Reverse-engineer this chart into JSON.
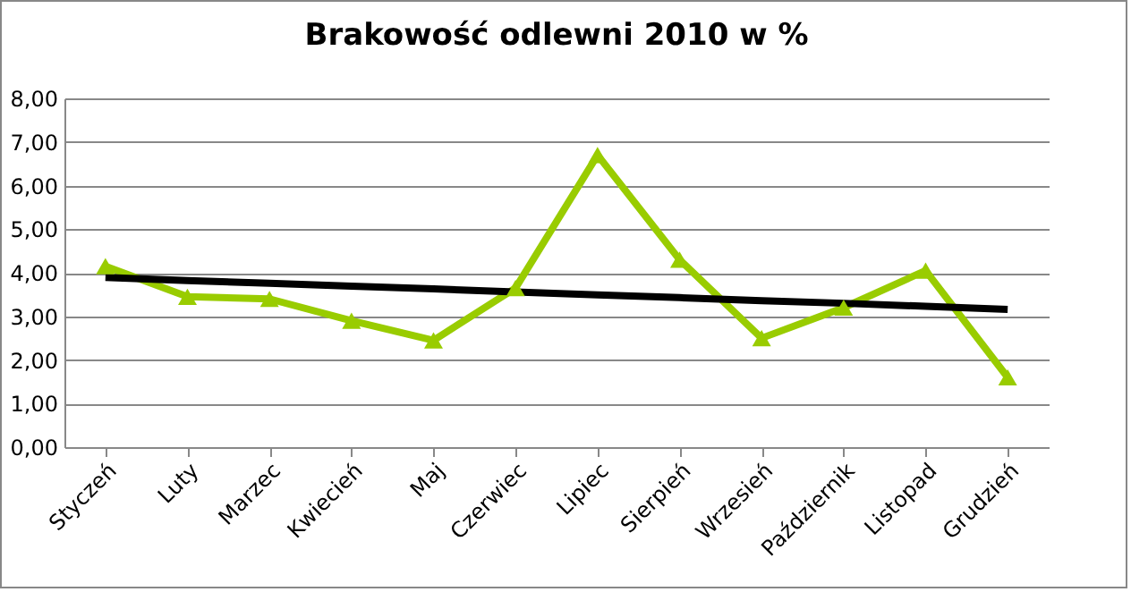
{
  "chart_data": {
    "type": "line",
    "title": "Brakowość odlewni 2010 w %",
    "categories": [
      "Styczeń",
      "Luty",
      "Marzec",
      "Kwiecień",
      "Maj",
      "Czerwiec",
      "Lipiec",
      "Sierpień",
      "Wrzesień",
      "Październik",
      "Listopad",
      "Grudzień"
    ],
    "series": [
      {
        "color": "#99cc00",
        "marker": "triangle",
        "values": [
          4.15,
          3.45,
          3.4,
          2.9,
          2.45,
          3.65,
          6.7,
          4.3,
          2.5,
          3.2,
          4.05,
          1.6
        ]
      },
      {
        "color": "#000000",
        "marker": "none",
        "values": [
          3.89,
          3.82,
          3.76,
          3.69,
          3.63,
          3.56,
          3.49,
          3.43,
          3.36,
          3.3,
          3.23,
          3.16
        ]
      }
    ],
    "ylim": [
      0,
      8
    ],
    "yticks": [
      {
        "value": 0,
        "label": "0,00"
      },
      {
        "value": 1,
        "label": "1,00"
      },
      {
        "value": 2,
        "label": "2,00"
      },
      {
        "value": 3,
        "label": "3,00"
      },
      {
        "value": 4,
        "label": "4,00"
      },
      {
        "value": 5,
        "label": "5,00"
      },
      {
        "value": 6,
        "label": "6,00"
      },
      {
        "value": 7,
        "label": "7,00"
      },
      {
        "value": 8,
        "label": "8,00"
      }
    ],
    "grid": "y",
    "line_style": "solid"
  }
}
